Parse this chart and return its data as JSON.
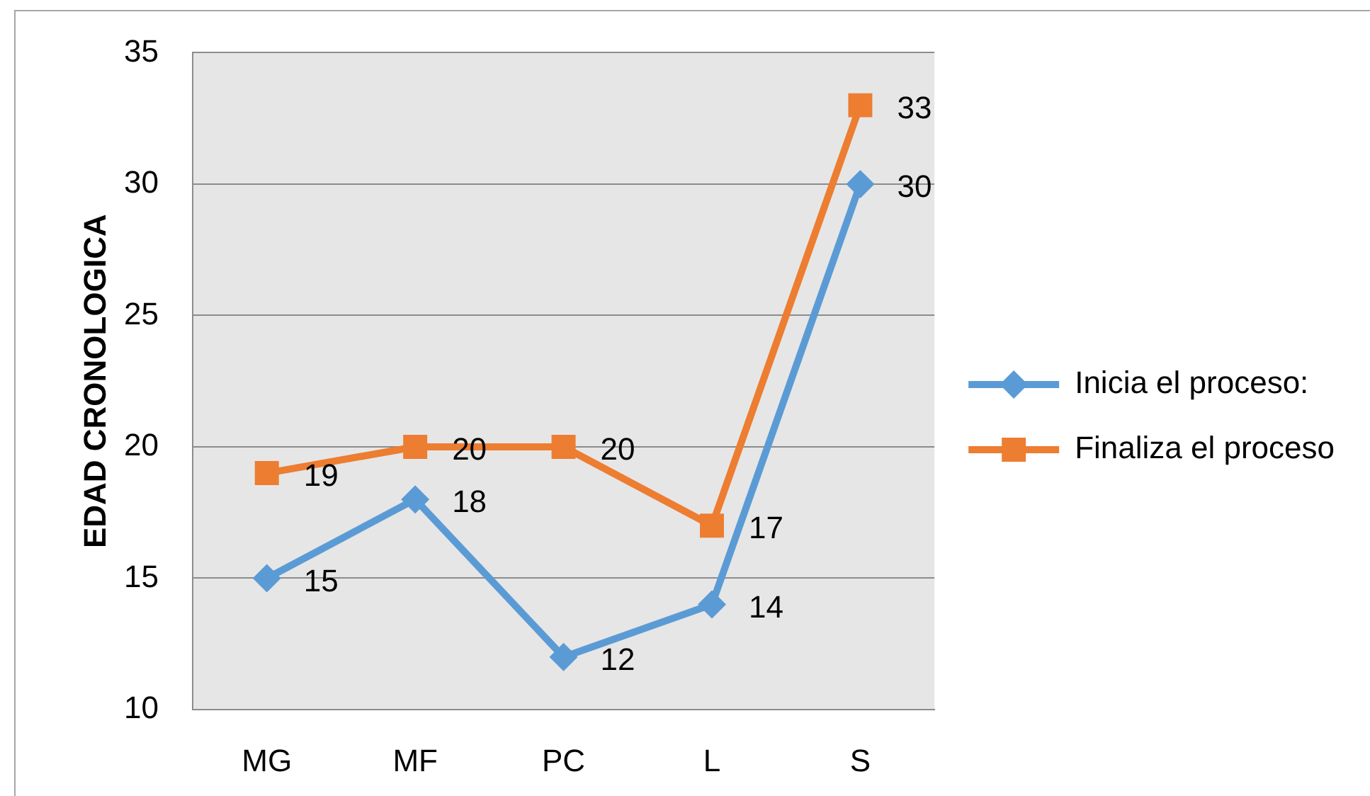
{
  "chart_data": {
    "type": "line",
    "ylabel": "EDAD CRONOLOGICA",
    "categories": [
      "MG",
      "MF",
      "PC",
      "L",
      "S"
    ],
    "series": [
      {
        "name": "Inicia el proceso:",
        "color": "#5b9bd5",
        "marker": "diamond",
        "values": [
          15,
          18,
          12,
          14,
          30
        ]
      },
      {
        "name": "Finaliza el proceso",
        "color": "#ed7d31",
        "marker": "square",
        "values": [
          19,
          20,
          20,
          17,
          33
        ]
      }
    ],
    "ylim": [
      10,
      35
    ],
    "yticks": [
      10,
      15,
      20,
      25,
      30,
      35
    ],
    "grid": "y",
    "legend": "right",
    "data_labels": true,
    "line_style": "solid"
  }
}
